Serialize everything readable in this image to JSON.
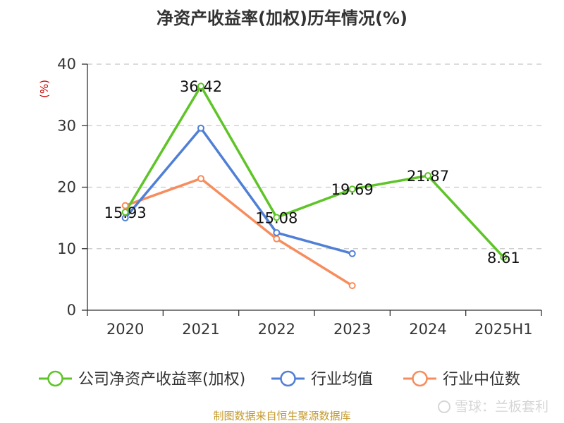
{
  "chart_data": {
    "type": "line",
    "title": "净资产收益率(加权)历年情况(%)",
    "ylabel": "(%)",
    "ylim": [
      0,
      40
    ],
    "yticks": [
      0,
      10,
      20,
      30,
      40
    ],
    "categories": [
      "2020",
      "2021",
      "2022",
      "2023",
      "2024",
      "2025H1"
    ],
    "series": [
      {
        "name": "公司净资产收益率(加权)",
        "color": "#5ec427",
        "values": [
          15.93,
          36.42,
          15.08,
          19.69,
          21.87,
          8.61
        ],
        "labels": [
          "15.93",
          "36.42",
          "15.08",
          "19.69",
          "21.87",
          "8.61"
        ]
      },
      {
        "name": "行业均值",
        "color": "#4f7fd6",
        "values": [
          15.0,
          29.6,
          12.6,
          9.2,
          null,
          null
        ]
      },
      {
        "name": "行业中位数",
        "color": "#f78c5c",
        "values": [
          17.0,
          21.4,
          11.6,
          4.0,
          null,
          null
        ]
      }
    ],
    "grid": true,
    "legend": "bottom"
  },
  "colors": {
    "ylabel": "#cc0000",
    "source": "#c59a2c"
  },
  "footer": {
    "source": "制图数据来自恒生聚源数据库",
    "watermark": "雪球：兰板套利"
  }
}
